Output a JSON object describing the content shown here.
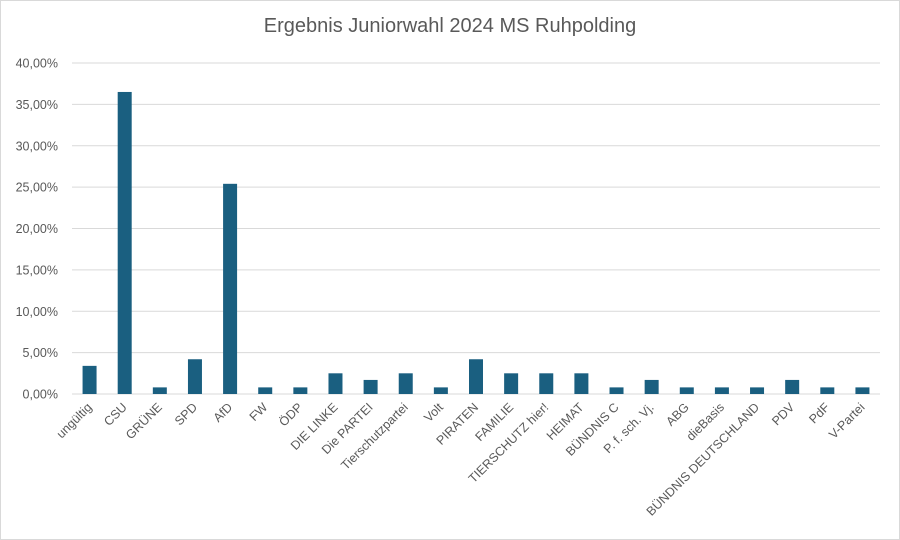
{
  "chart_data": {
    "type": "bar",
    "title": "Ergebnis Juniorwahl 2024 MS Ruhpolding",
    "xlabel": "",
    "ylabel": "",
    "ylim": [
      0,
      0.4
    ],
    "yticks": [
      0,
      0.05,
      0.1,
      0.15,
      0.2,
      0.25,
      0.3,
      0.35,
      0.4
    ],
    "ytick_labels": [
      "0,00%",
      "5,00%",
      "10,00%",
      "15,00%",
      "20,00%",
      "25,00%",
      "30,00%",
      "35,00%",
      "40,00%"
    ],
    "grid": true,
    "legend": "none",
    "bar_color": "#1a5f80",
    "categories": [
      "ungültig",
      "CSU",
      "GRÜNE",
      "SPD",
      "AfD",
      "FW",
      "ÖDP",
      "DIE LINKE",
      "Die PARTEI",
      "Tierschutzpartei",
      "Volt",
      "PIRATEN",
      "FAMILIE",
      "TIERSCHUTZ hier!",
      "HEIMAT",
      "BÜNDNIS C",
      "P. f. sch. Vj.",
      "ABG",
      "dieBasis",
      "BÜNDNIS DEUTSCHLAND",
      "PDV",
      "PdF",
      "V-Partei"
    ],
    "values": [
      0.034,
      0.365,
      0.008,
      0.042,
      0.254,
      0.008,
      0.008,
      0.025,
      0.017,
      0.025,
      0.008,
      0.042,
      0.025,
      0.025,
      0.025,
      0.008,
      0.017,
      0.008,
      0.008,
      0.008,
      0.017,
      0.008,
      0.008
    ]
  }
}
